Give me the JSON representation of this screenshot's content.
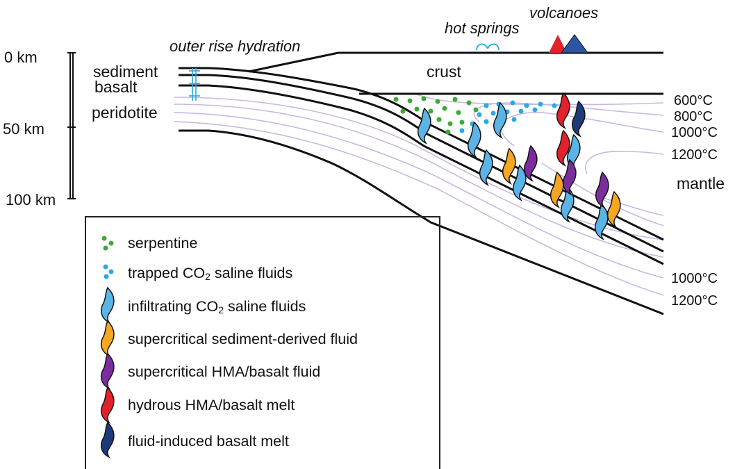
{
  "depth_axis": {
    "ticks": [
      "0 km",
      "50 km",
      "100 km"
    ]
  },
  "labels": {
    "outer_rise": "outer rise hydration",
    "hot_springs": "hot springs",
    "volcanoes": "volcanoes",
    "crust": "crust",
    "mantle": "mantle",
    "sediment": "sediment",
    "basalt": "basalt",
    "peridotite": "peridotite"
  },
  "isotherms_upper": [
    "600°C",
    "800°C",
    "1000°C",
    "1200°C"
  ],
  "isotherms_lower": [
    "1000°C",
    "1200°C"
  ],
  "legend": {
    "serpentine": "serpentine",
    "trapped_pre": "trapped CO",
    "trapped_sub": "2",
    "trapped_post": " saline fluids",
    "infiltrating_pre": "infiltrating CO",
    "infiltrating_sub": "2",
    "infiltrating_post": " saline fluids",
    "sediment_fluid": "supercritical sediment-derived fluid",
    "hma_fluid": "supercritical HMA/basalt fluid",
    "hydrous_melt": "hydrous HMA/basalt melt",
    "basalt_melt": "fluid-induced basalt melt"
  },
  "colors": {
    "serpentine": "#3aaa35",
    "trapped_fluid": "#29a9e1",
    "infiltrating_fluid": "#5ab4e6",
    "sediment_fluid": "#f5a623",
    "hma_fluid": "#7b2d9e",
    "hydrous_melt": "#e3212b",
    "basalt_melt": "#1f3a78",
    "isotherm": "#c9b8de",
    "volcano_red": "#e3212b",
    "volcano_blue": "#2a57a5"
  }
}
